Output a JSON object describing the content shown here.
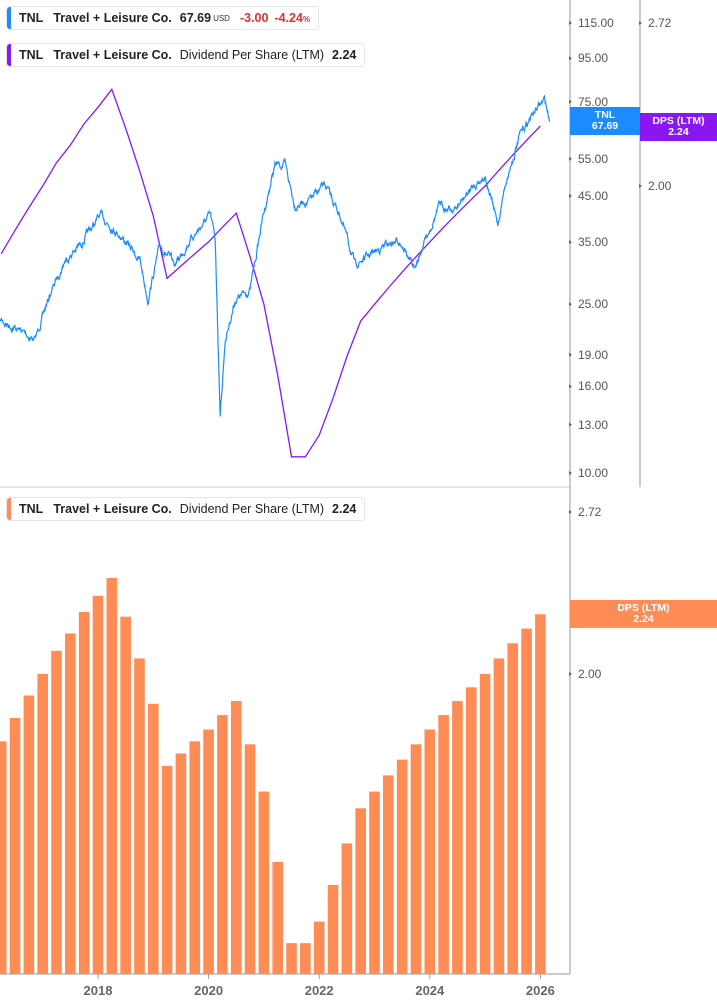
{
  "legend_price": {
    "ticker": "TNL",
    "name": "Travel + Leisure Co.",
    "value": "67.69",
    "currency": "USD",
    "change": "-3.00",
    "change_pct": "-4.24",
    "pct_sign": "%"
  },
  "legend_dps_top": {
    "ticker": "TNL",
    "name": "Travel + Leisure Co.",
    "metric": "Dividend Per Share (LTM)",
    "value": "2.24"
  },
  "legend_dps_bottom": {
    "ticker": "TNL",
    "name": "Travel + Leisure Co.",
    "metric": "Dividend Per Share (LTM)",
    "value": "2.24"
  },
  "tags": {
    "price": {
      "label": "TNL",
      "value": "67.69"
    },
    "dps_top": {
      "label": "DPS (LTM)",
      "value": "2.24"
    },
    "dps_bottom": {
      "label": "DPS (LTM)",
      "value": "2.24"
    }
  },
  "colors": {
    "price": "#1a8cff",
    "dps_line": "#8a17f0",
    "dps_bar": "#ff8c55",
    "negative": "#e03030"
  },
  "chart_data": [
    {
      "type": "line",
      "scale": "log",
      "series": [
        {
          "name": "TNL",
          "x": [
            2016.23,
            2016.59,
            2016.86,
            2017.13,
            2017.4,
            2017.67,
            2018.04,
            2018.4,
            2018.76,
            2018.9,
            2019.12,
            2019.39,
            2019.66,
            2020.03,
            2020.12,
            2020.21,
            2020.3,
            2020.48,
            2020.75,
            2020.97,
            2021.2,
            2021.38,
            2021.56,
            2021.83,
            2022.1,
            2022.38,
            2022.65,
            2022.92,
            2023.19,
            2023.46,
            2023.73,
            2023.91,
            2024.18,
            2024.46,
            2024.73,
            2025.0,
            2025.23,
            2025.36,
            2025.63,
            2025.9,
            2026.08,
            2026.17
          ],
          "y": [
            22.9,
            21.7,
            20.6,
            26.3,
            31.7,
            34.4,
            40.5,
            36.4,
            31.7,
            25.6,
            34.4,
            30.9,
            35.4,
            40.5,
            35.4,
            13.7,
            20.6,
            25.6,
            27.0,
            39.5,
            53.2,
            53.2,
            42.8,
            43.9,
            47.8,
            40.5,
            30.9,
            32.7,
            34.4,
            35.4,
            30.1,
            35.4,
            42.8,
            41.7,
            46.5,
            50.4,
            38.4,
            47.8,
            62.6,
            71.5,
            75.7,
            67.69
          ]
        }
      ],
      "y_ticks": [
        "115.00",
        "95.00",
        "75.00",
        "55.00",
        "45.00",
        "35.00",
        "25.00",
        "19.00",
        "16.00",
        "13.00",
        "10.00"
      ],
      "y2_ticks": [
        "2.72",
        "2.00"
      ]
    },
    {
      "type": "bar",
      "scale": "log",
      "x_start": 2016.25,
      "x_step_years": 0.25,
      "values": [
        1.76,
        1.84,
        1.92,
        2.0,
        2.09,
        2.16,
        2.25,
        2.32,
        2.4,
        2.23,
        2.06,
        1.89,
        1.68,
        1.72,
        1.76,
        1.8,
        1.85,
        1.9,
        1.75,
        1.6,
        1.4,
        1.2,
        1.2,
        1.25,
        1.34,
        1.45,
        1.55,
        1.6,
        1.65,
        1.7,
        1.75,
        1.8,
        1.85,
        1.9,
        1.95,
        2.0,
        2.06,
        2.12,
        2.18,
        2.24
      ],
      "y_ticks": [
        "2.72",
        "2.00"
      ],
      "x_ticks": [
        "2018",
        "2020",
        "2022",
        "2024",
        "2026"
      ]
    }
  ]
}
